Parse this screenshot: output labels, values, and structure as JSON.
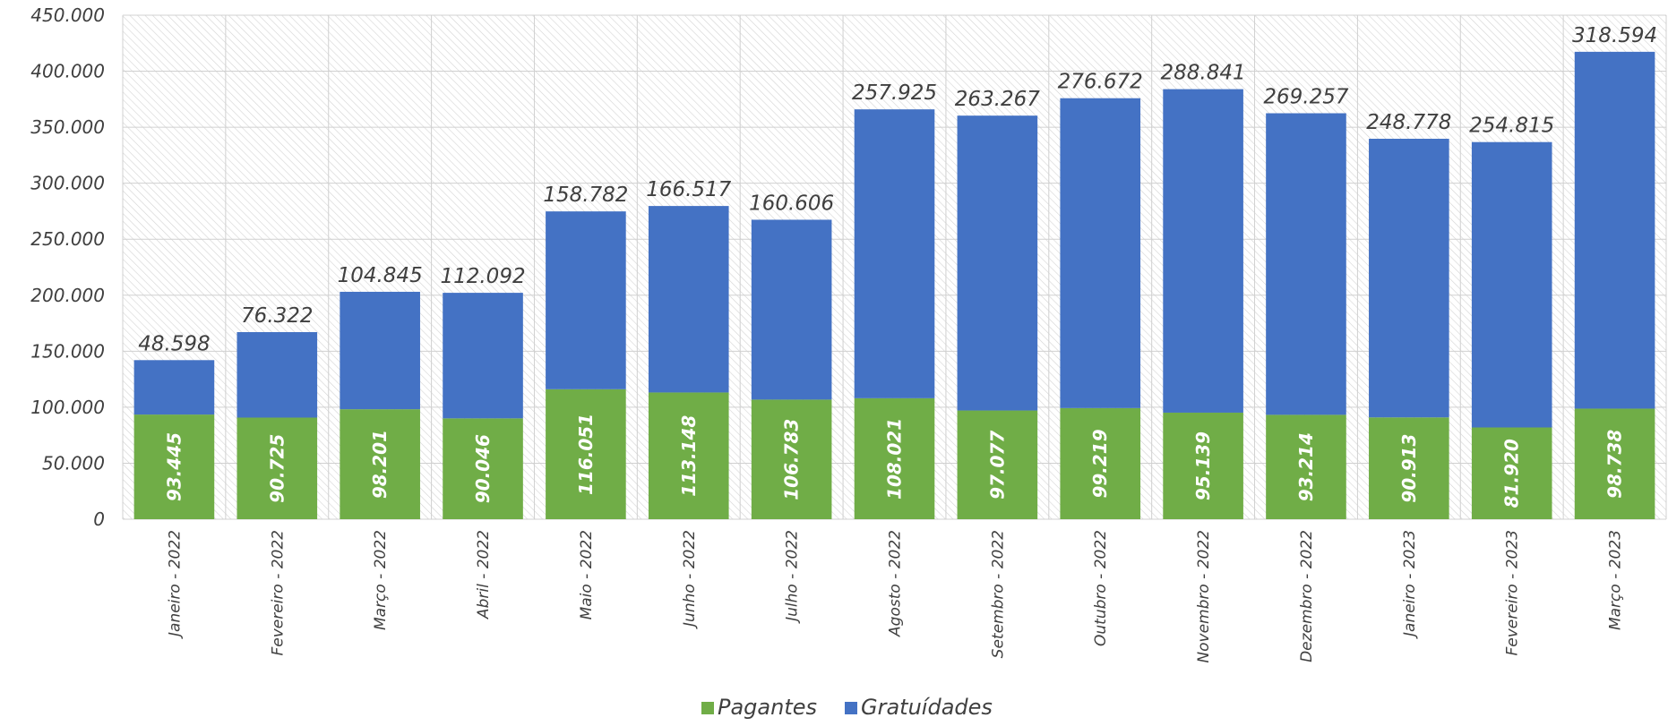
{
  "chart_data": {
    "type": "bar",
    "stacked": true,
    "categories": [
      "Janeiro - 2022",
      "Fevereiro - 2022",
      "Março - 2022",
      "Abril - 2022",
      "Maio - 2022",
      "Junho - 2022",
      "Julho - 2022",
      "Agosto - 2022",
      "Setembro - 2022",
      "Outubro - 2022",
      "Novembro - 2022",
      "Dezembro - 2022",
      "Janeiro - 2023",
      "Fevereiro - 2023",
      "Março - 2023"
    ],
    "series": [
      {
        "name": "Pagantes",
        "color": "#70ad47",
        "values": [
          93445,
          90725,
          98201,
          90046,
          116051,
          113148,
          106783,
          108021,
          97077,
          99219,
          95139,
          93214,
          90913,
          81920,
          98738
        ],
        "labels": [
          "93.445",
          "90.725",
          "98.201",
          "90.046",
          "116.051",
          "113.148",
          "106.783",
          "108.021",
          "97.077",
          "99.219",
          "95.139",
          "93.214",
          "90.913",
          "81.920",
          "98.738"
        ]
      },
      {
        "name": "Gratuídades",
        "color": "#4472c4",
        "values": [
          48598,
          76322,
          104845,
          112092,
          158782,
          166517,
          160606,
          257925,
          263267,
          276672,
          288841,
          269257,
          248778,
          254815,
          318594
        ],
        "labels": [
          "48.598",
          "76.322",
          "104.845",
          "112.092",
          "158.782",
          "166.517",
          "160.606",
          "257.925",
          "263.267",
          "276.672",
          "288.841",
          "269.257",
          "248.778",
          "254.815",
          "318.594"
        ]
      }
    ],
    "y_ticks": [
      0,
      50000,
      100000,
      150000,
      200000,
      250000,
      300000,
      350000,
      400000,
      450000
    ],
    "y_tick_labels": [
      "0",
      "50.000",
      "100.000",
      "150.000",
      "200.000",
      "250.000",
      "300.000",
      "350.000",
      "400.000",
      "450.000"
    ],
    "ylim": [
      0,
      450000
    ],
    "grid": true,
    "legend_position": "bottom-center",
    "title": "",
    "xlabel": "",
    "ylabel": ""
  }
}
